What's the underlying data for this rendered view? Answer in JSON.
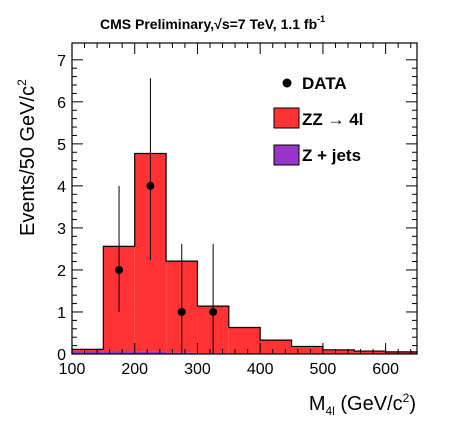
{
  "chart_data": {
    "type": "bar",
    "title": {
      "pre": "CMS Preliminary,",
      "sqrt": "√",
      "post": "s=7 TeV, 1.1 fb",
      "sup": "-1"
    },
    "xlabel": {
      "main": "M",
      "sub": "4l",
      "unit": " (GeV/c",
      "unit_sup": "2",
      "close": ")"
    },
    "ylabel": {
      "main": "Events/50 GeV/c",
      "sup": "2"
    },
    "xlim": [
      100,
      650
    ],
    "ylim": [
      0,
      7.4
    ],
    "xticks": [
      100,
      200,
      300,
      400,
      500,
      600
    ],
    "yticks": [
      0,
      1,
      2,
      3,
      4,
      5,
      6,
      7
    ],
    "bin_width": 50,
    "bin_edges": [
      100,
      150,
      200,
      250,
      300,
      350,
      400,
      450,
      500,
      550,
      600,
      650
    ],
    "series": [
      {
        "name": "ZZ → 4l",
        "kind": "stacked-hist",
        "color": "#ff3333",
        "values": [
          0.05,
          2.5,
          4.72,
          2.18,
          1.12,
          0.62,
          0.33,
          0.18,
          0.1,
          0.07,
          0.05
        ]
      },
      {
        "name": "Z + jets",
        "kind": "stacked-hist",
        "color": "#9933cc",
        "values": [
          0.06,
          0.06,
          0.05,
          0.03,
          0.02,
          0.01,
          0.0,
          0.0,
          0.0,
          0.0,
          0.0
        ]
      },
      {
        "name": "DATA",
        "kind": "points",
        "color": "#000000",
        "x": [
          175,
          225,
          275,
          325
        ],
        "y": [
          2,
          4,
          1,
          1
        ],
        "yerr_low": [
          1.0,
          1.76,
          1.0,
          1.0
        ],
        "yerr_high": [
          2.0,
          2.56,
          1.62,
          1.62
        ]
      }
    ],
    "legend": {
      "placement": "top-right",
      "entries": [
        {
          "label": "DATA",
          "type": "marker"
        },
        {
          "pre": "ZZ ",
          "arrow": "→",
          "post": " 4l",
          "type": "box",
          "color": "#ff3333"
        },
        {
          "label": "Z + jets",
          "type": "box",
          "color": "#9933cc"
        }
      ]
    },
    "grid": false
  }
}
